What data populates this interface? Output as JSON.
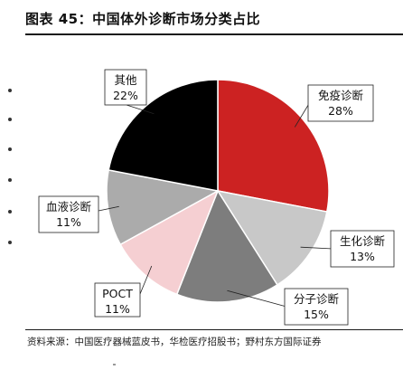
{
  "title": "图表 45：中国体外诊断市场分类占比",
  "source": "资料来源：中国医疗器械蓝皮书，华检医疗招股书；野村东方国际证券",
  "chart_data": {
    "type": "pie",
    "title": "图表 45：中国体外诊断市场分类占比",
    "slices": [
      {
        "name": "免疫诊断",
        "value": 28,
        "label": "28%",
        "color": "#cc2222"
      },
      {
        "name": "生化诊断",
        "value": 13,
        "label": "13%",
        "color": "#c8c8c8"
      },
      {
        "name": "分子诊断",
        "value": 15,
        "label": "15%",
        "color": "#7d7d7d"
      },
      {
        "name": "POCT",
        "value": 11,
        "label": "11%",
        "color": "#f5cfd2"
      },
      {
        "name": "血液诊断",
        "value": 11,
        "label": "11%",
        "color": "#ababab"
      },
      {
        "name": "其他",
        "value": 22,
        "label": "22%",
        "color": "#000000"
      }
    ],
    "start_angle": "12 o'clock",
    "direction": "clockwise",
    "legend": "none",
    "label_style": "callout boxes"
  }
}
